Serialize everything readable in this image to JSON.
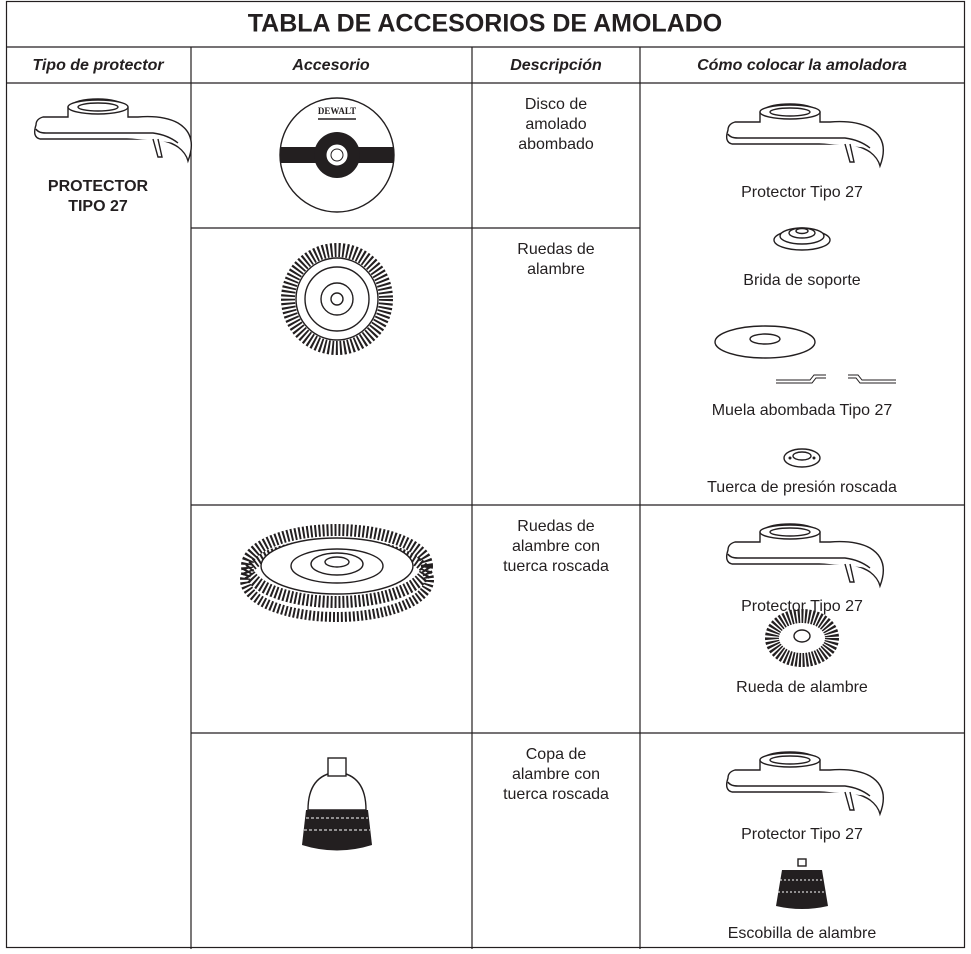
{
  "title": "TABLA DE ACCESORIOS DE AMOLADO",
  "headers": [
    "Tipo de protector",
    "Accesorio",
    "Descripción",
    "Cómo colocar la amoladora"
  ],
  "guard_type": [
    "PROTECTOR",
    "TIPO 27"
  ],
  "brand": "DEWALT",
  "rows": [
    {
      "description": [
        "Disco de",
        "amolado",
        "abombado"
      ]
    },
    {
      "description": [
        "Ruedas de",
        "alambre"
      ]
    },
    {
      "description": [
        "Ruedas de",
        "alambre con",
        "tuerca roscada"
      ]
    },
    {
      "description": [
        "Copa de",
        "alambre con",
        "tuerca roscada"
      ]
    }
  ],
  "mounting": [
    [
      "Protector Tipo 27",
      "Brida de soporte",
      "Muela abombada Tipo 27",
      "Tuerca de presión roscada"
    ],
    [
      "Protector Tipo 27",
      "Rueda de alambre"
    ],
    [
      "Protector Tipo 27",
      "Escobilla de alambre"
    ]
  ]
}
